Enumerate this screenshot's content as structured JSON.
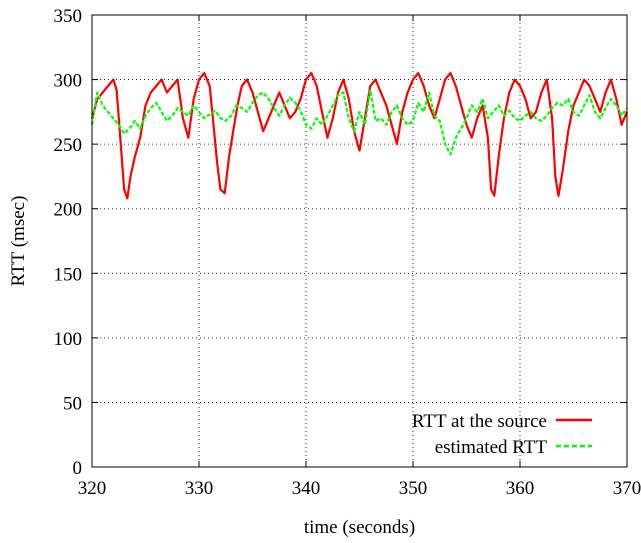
{
  "chart_data": {
    "type": "line",
    "title": "",
    "xlabel": "time (seconds)",
    "ylabel": "RTT (msec)",
    "xlim": [
      320,
      370
    ],
    "ylim": [
      0,
      350
    ],
    "x_ticks": [
      "320",
      "330",
      "340",
      "350",
      "360",
      "370"
    ],
    "y_ticks": [
      "0",
      "50",
      "100",
      "150",
      "200",
      "250",
      "300",
      "350"
    ],
    "grid": true,
    "legend_position": "bottom-right",
    "series": [
      {
        "name": "RTT at the source",
        "color": "#ff0000",
        "style": "solid",
        "x": [
          320.0,
          320.5,
          321.0,
          321.5,
          322.0,
          322.3,
          322.6,
          323.0,
          323.3,
          323.6,
          324.0,
          324.5,
          325.0,
          325.5,
          326.0,
          326.5,
          327.0,
          327.5,
          328.0,
          328.5,
          329.0,
          329.5,
          330.0,
          330.5,
          331.0,
          331.3,
          331.7,
          332.0,
          332.4,
          332.8,
          333.2,
          333.6,
          334.0,
          334.5,
          335.0,
          335.5,
          336.0,
          336.5,
          337.0,
          337.5,
          338.0,
          338.5,
          339.0,
          339.5,
          340.0,
          340.5,
          341.0,
          341.5,
          342.0,
          342.5,
          343.0,
          343.5,
          344.0,
          344.5,
          345.0,
          345.5,
          346.0,
          346.5,
          347.0,
          347.5,
          348.0,
          348.5,
          349.0,
          349.5,
          350.0,
          350.5,
          351.0,
          351.5,
          352.0,
          352.5,
          353.0,
          353.5,
          354.0,
          354.5,
          355.0,
          355.5,
          356.0,
          356.5,
          357.0,
          357.3,
          357.6,
          358.0,
          358.5,
          359.0,
          359.5,
          360.0,
          360.5,
          361.0,
          361.5,
          362.0,
          362.5,
          363.0,
          363.3,
          363.6,
          364.0,
          364.5,
          365.0,
          365.5,
          366.0,
          366.5,
          367.0,
          367.5,
          368.0,
          368.5,
          369.0,
          369.5,
          370.0
        ],
        "y": [
          270,
          285,
          290,
          295,
          300,
          292,
          260,
          215,
          208,
          225,
          240,
          255,
          280,
          290,
          295,
          300,
          290,
          295,
          300,
          270,
          255,
          285,
          300,
          305,
          295,
          270,
          235,
          215,
          212,
          240,
          260,
          280,
          295,
          300,
          290,
          275,
          260,
          270,
          280,
          290,
          280,
          270,
          275,
          285,
          300,
          305,
          295,
          275,
          255,
          270,
          290,
          300,
          285,
          260,
          245,
          270,
          295,
          300,
          290,
          280,
          265,
          250,
          275,
          290,
          300,
          305,
          295,
          280,
          270,
          285,
          300,
          305,
          295,
          280,
          265,
          255,
          270,
          280,
          255,
          215,
          210,
          240,
          270,
          290,
          300,
          295,
          285,
          270,
          275,
          290,
          300,
          270,
          225,
          210,
          230,
          260,
          280,
          290,
          300,
          295,
          285,
          275,
          290,
          300,
          285,
          265,
          275
        ]
      },
      {
        "name": "estimated RTT",
        "color": "#00ff00",
        "style": "dashed",
        "x": [
          320.0,
          320.5,
          321.0,
          321.5,
          322.0,
          322.5,
          323.0,
          323.5,
          324.0,
          324.5,
          325.0,
          325.5,
          326.0,
          326.5,
          327.0,
          327.5,
          328.0,
          328.5,
          329.0,
          329.5,
          330.0,
          330.5,
          331.0,
          331.5,
          332.0,
          332.5,
          333.0,
          333.5,
          334.0,
          334.5,
          335.0,
          335.5,
          336.0,
          336.5,
          337.0,
          337.5,
          338.0,
          338.5,
          339.0,
          339.5,
          340.0,
          340.5,
          341.0,
          341.5,
          342.0,
          342.5,
          343.0,
          343.5,
          344.0,
          344.5,
          345.0,
          345.5,
          346.0,
          346.5,
          347.0,
          347.5,
          348.0,
          348.5,
          349.0,
          349.5,
          350.0,
          350.5,
          351.0,
          351.5,
          352.0,
          352.5,
          353.0,
          353.5,
          354.0,
          354.5,
          355.0,
          355.5,
          356.0,
          356.5,
          357.0,
          357.5,
          358.0,
          358.5,
          359.0,
          359.5,
          360.0,
          360.5,
          361.0,
          361.5,
          362.0,
          362.5,
          363.0,
          363.5,
          364.0,
          364.5,
          365.0,
          365.5,
          366.0,
          366.5,
          367.0,
          367.5,
          368.0,
          368.5,
          369.0,
          369.5,
          370.0
        ],
        "y": [
          265,
          290,
          280,
          275,
          270,
          265,
          258,
          262,
          268,
          262,
          272,
          278,
          282,
          275,
          268,
          272,
          278,
          275,
          272,
          280,
          275,
          270,
          273,
          276,
          270,
          268,
          272,
          280,
          278,
          275,
          282,
          288,
          290,
          285,
          278,
          272,
          280,
          286,
          282,
          276,
          265,
          262,
          270,
          265,
          272,
          280,
          288,
          290,
          270,
          260,
          275,
          265,
          292,
          268,
          270,
          265,
          275,
          280,
          270,
          265,
          268,
          282,
          275,
          290,
          272,
          268,
          250,
          242,
          255,
          262,
          270,
          280,
          275,
          285,
          270,
          275,
          280,
          272,
          276,
          270,
          268,
          272,
          275,
          270,
          268,
          272,
          278,
          282,
          280,
          285,
          275,
          272,
          280,
          288,
          275,
          270,
          278,
          285,
          280,
          272,
          278
        ]
      }
    ]
  }
}
